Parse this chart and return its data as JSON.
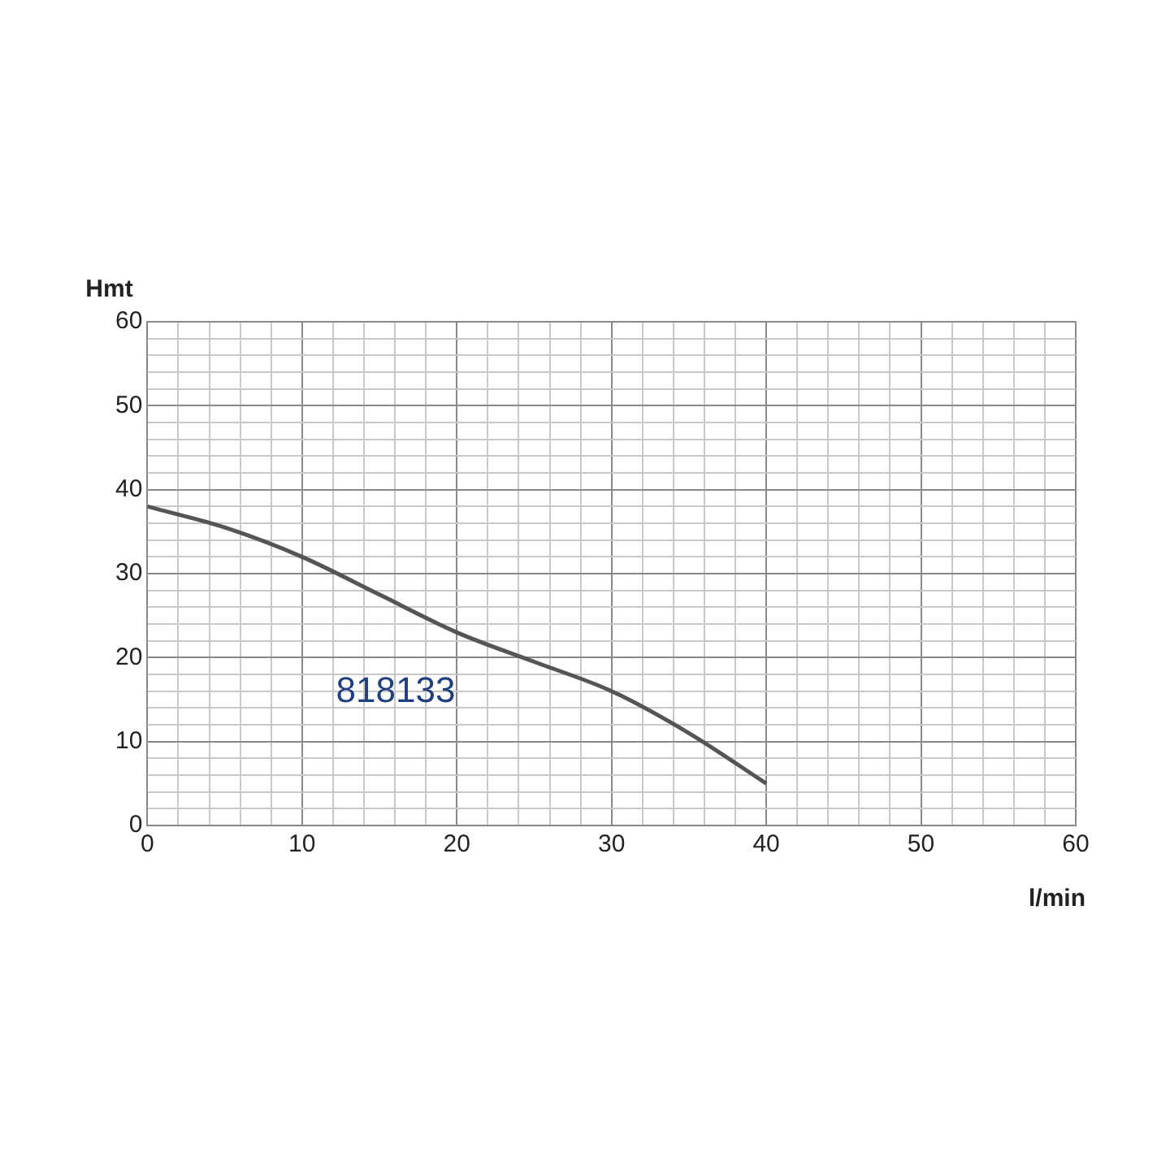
{
  "chart_data": {
    "type": "line",
    "xlabel": "l/min",
    "ylabel": "Hmt",
    "x": [
      0,
      5,
      10,
      15,
      20,
      25,
      30,
      35,
      40
    ],
    "series": [
      {
        "name": "818133",
        "color": "#555555",
        "values": [
          38,
          35.5,
          32,
          27.5,
          23,
          19.5,
          16,
          11,
          5
        ]
      }
    ],
    "xlim": [
      0,
      60
    ],
    "ylim": [
      0,
      60
    ],
    "xticks": [
      0,
      {
        "value": 2,
        "label": null
      },
      {
        "value": 4,
        "label": null
      },
      {
        "value": 6,
        "label": null
      },
      {
        "value": 8,
        "label": null
      },
      10,
      {
        "value": 12,
        "label": null
      },
      {
        "value": 14,
        "label": null
      },
      {
        "value": 16,
        "label": null
      },
      {
        "value": 18,
        "label": null
      },
      20,
      {
        "value": 22,
        "label": null
      },
      {
        "value": 24,
        "label": null
      },
      {
        "value": 26,
        "label": null
      },
      {
        "value": 28,
        "label": null
      },
      30,
      {
        "value": 32,
        "label": null
      },
      {
        "value": 34,
        "label": null
      },
      {
        "value": 36,
        "label": null
      },
      {
        "value": 38,
        "label": null
      },
      40,
      {
        "value": 42,
        "label": null
      },
      {
        "value": 44,
        "label": null
      },
      {
        "value": 46,
        "label": null
      },
      {
        "value": 48,
        "label": null
      },
      50,
      {
        "value": 52,
        "label": null
      },
      {
        "value": 54,
        "label": null
      },
      {
        "value": 56,
        "label": null
      },
      {
        "value": 58,
        "label": null
      },
      60
    ],
    "yticks": [
      0,
      {
        "value": 2,
        "label": null
      },
      {
        "value": 4,
        "label": null
      },
      {
        "value": 6,
        "label": null
      },
      {
        "value": 8,
        "label": null
      },
      10,
      {
        "value": 12,
        "label": null
      },
      {
        "value": 14,
        "label": null
      },
      {
        "value": 16,
        "label": null
      },
      {
        "value": 18,
        "label": null
      },
      20,
      {
        "value": 22,
        "label": null
      },
      {
        "value": 24,
        "label": null
      },
      {
        "value": 26,
        "label": null
      },
      {
        "value": 28,
        "label": null
      },
      30,
      {
        "value": 32,
        "label": null
      },
      {
        "value": 34,
        "label": null
      },
      {
        "value": 36,
        "label": null
      },
      {
        "value": 38,
        "label": null
      },
      40,
      {
        "value": 42,
        "label": null
      },
      {
        "value": 44,
        "label": null
      },
      {
        "value": 46,
        "label": null
      },
      {
        "value": 48,
        "label": null
      },
      50,
      {
        "value": 52,
        "label": null
      },
      {
        "value": 54,
        "label": null
      },
      {
        "value": 56,
        "label": null
      },
      {
        "value": 58,
        "label": null
      },
      60
    ],
    "grid": true,
    "marker": "none",
    "line_style": "solid"
  }
}
